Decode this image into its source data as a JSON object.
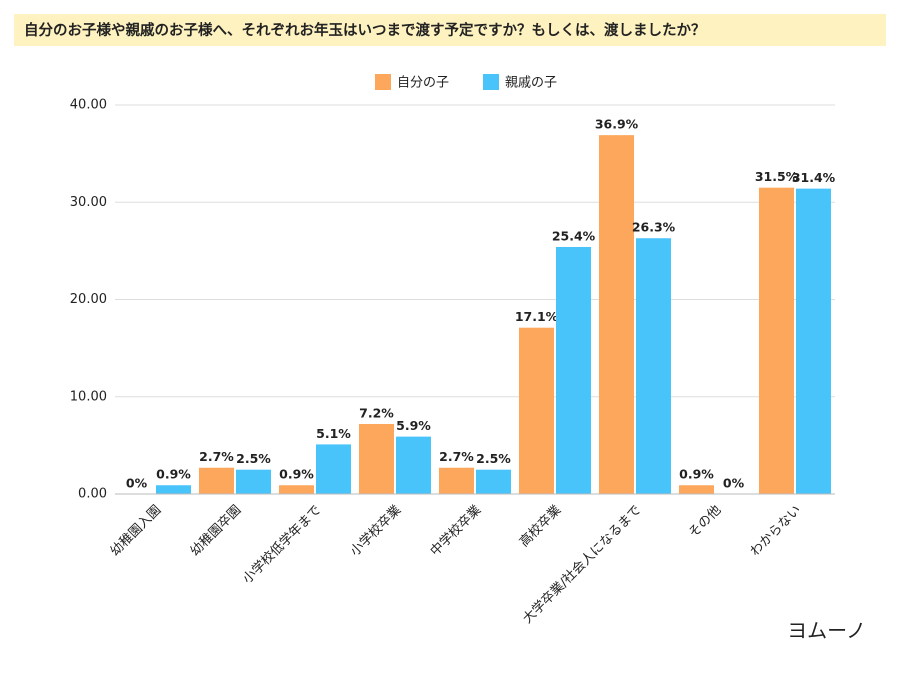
{
  "chart_data": {
    "type": "bar",
    "title": "自分のお子様や親戚のお子様へ、それぞれお年玉はいつまで渡す予定ですか？もしくは、渡しましたか？",
    "categories": [
      "幼稚園入園",
      "幼稚園卒園",
      "小学校低学年まで",
      "小学校卒業",
      "中学校卒業",
      "高校卒業",
      "大学卒業/社会人になるまで",
      "その他",
      "わからない"
    ],
    "series": [
      {
        "name": "自分の子",
        "color": "#fca75b",
        "values": [
          0,
          2.7,
          0.9,
          7.2,
          2.7,
          17.1,
          36.9,
          0.9,
          31.5
        ],
        "value_labels": [
          "0%",
          "2.7%",
          "0.9%",
          "7.2%",
          "2.7%",
          "17.1%",
          "36.9%",
          "0.9%",
          "31.5%"
        ]
      },
      {
        "name": "親戚の子",
        "color": "#49c4fa",
        "values": [
          0.9,
          2.5,
          5.1,
          5.9,
          2.5,
          25.4,
          26.3,
          0,
          31.4
        ],
        "value_labels": [
          "0.9%",
          "2.5%",
          "5.1%",
          "5.9%",
          "2.5%",
          "25.4%",
          "26.3%",
          "0%",
          "31.4%"
        ]
      }
    ],
    "ylim": [
      0,
      40
    ],
    "yticks": [
      {
        "value": 0,
        "label": "0.00"
      },
      {
        "value": 10,
        "label": "10.00"
      },
      {
        "value": 20,
        "label": "20.00"
      },
      {
        "value": 30,
        "label": "30.00"
      },
      {
        "value": 40,
        "label": "40.00"
      }
    ],
    "grid": true,
    "legend": "top",
    "logo": "ヨムーノ"
  }
}
